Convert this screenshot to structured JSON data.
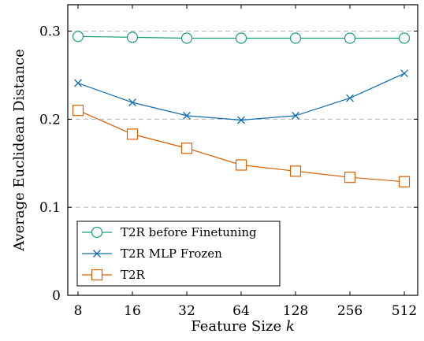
{
  "chart_data": {
    "type": "line",
    "title": "",
    "xlabel": "Feature Size",
    "xlabel_var": "k",
    "ylabel": "Average Euclidean Distance",
    "categories": [
      "8",
      "16",
      "32",
      "64",
      "128",
      "256",
      "512"
    ],
    "x_scale": "log2",
    "ylim": [
      0,
      0.33
    ],
    "y_ticks": [
      "0",
      "0.1",
      "0.2",
      "0.3"
    ],
    "y_tick_values": [
      0,
      0.1,
      0.2,
      0.3
    ],
    "grid": "horizontal dashed",
    "legend_position": "bottom-left",
    "series": [
      {
        "name": "T2R before Finetuning",
        "marker": "circle",
        "color": "#1b9e77",
        "values": [
          0.294,
          0.293,
          0.292,
          0.292,
          0.292,
          0.292,
          0.292
        ]
      },
      {
        "name": "T2R MLP Frozen",
        "marker": "x",
        "color": "#0f6eb0",
        "values": [
          0.241,
          0.219,
          0.204,
          0.199,
          0.204,
          0.224,
          0.252
        ]
      },
      {
        "name": "T2R",
        "marker": "square",
        "color": "#d95f02",
        "values": [
          0.21,
          0.183,
          0.167,
          0.148,
          0.141,
          0.134,
          0.129
        ]
      }
    ]
  }
}
